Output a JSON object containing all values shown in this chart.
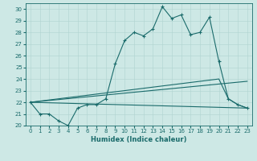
{
  "title": "",
  "xlabel": "Humidex (Indice chaleur)",
  "xlim": [
    -0.5,
    23.5
  ],
  "ylim": [
    20,
    30.5
  ],
  "yticks": [
    20,
    21,
    22,
    23,
    24,
    25,
    26,
    27,
    28,
    29,
    30
  ],
  "xticks": [
    0,
    1,
    2,
    3,
    4,
    5,
    6,
    7,
    8,
    9,
    10,
    11,
    12,
    13,
    14,
    15,
    16,
    17,
    18,
    19,
    20,
    21,
    22,
    23
  ],
  "bg_color": "#cde8e5",
  "line_color": "#1a6b6b",
  "grid_color": "#b0d4d0",
  "series_main": [
    [
      0,
      22.0
    ],
    [
      1,
      21.0
    ],
    [
      2,
      21.0
    ],
    [
      3,
      20.4
    ],
    [
      4,
      20.0
    ],
    [
      5,
      21.5
    ],
    [
      6,
      21.8
    ],
    [
      7,
      21.8
    ],
    [
      8,
      22.3
    ],
    [
      9,
      25.3
    ],
    [
      10,
      27.3
    ],
    [
      11,
      28.0
    ],
    [
      12,
      27.7
    ],
    [
      13,
      28.3
    ],
    [
      14,
      30.2
    ],
    [
      15,
      29.2
    ],
    [
      16,
      29.5
    ],
    [
      17,
      27.8
    ],
    [
      18,
      28.0
    ],
    [
      19,
      29.3
    ],
    [
      20,
      25.5
    ],
    [
      21,
      22.3
    ],
    [
      22,
      21.8
    ],
    [
      23,
      21.5
    ]
  ],
  "series_upper": [
    [
      0,
      22.0
    ],
    [
      23,
      23.8
    ]
  ],
  "series_mid": [
    [
      0,
      22.0
    ],
    [
      20,
      24.0
    ],
    [
      21,
      22.3
    ],
    [
      22,
      21.8
    ],
    [
      23,
      21.5
    ]
  ],
  "series_lower": [
    [
      0,
      22.0
    ],
    [
      23,
      21.5
    ]
  ]
}
